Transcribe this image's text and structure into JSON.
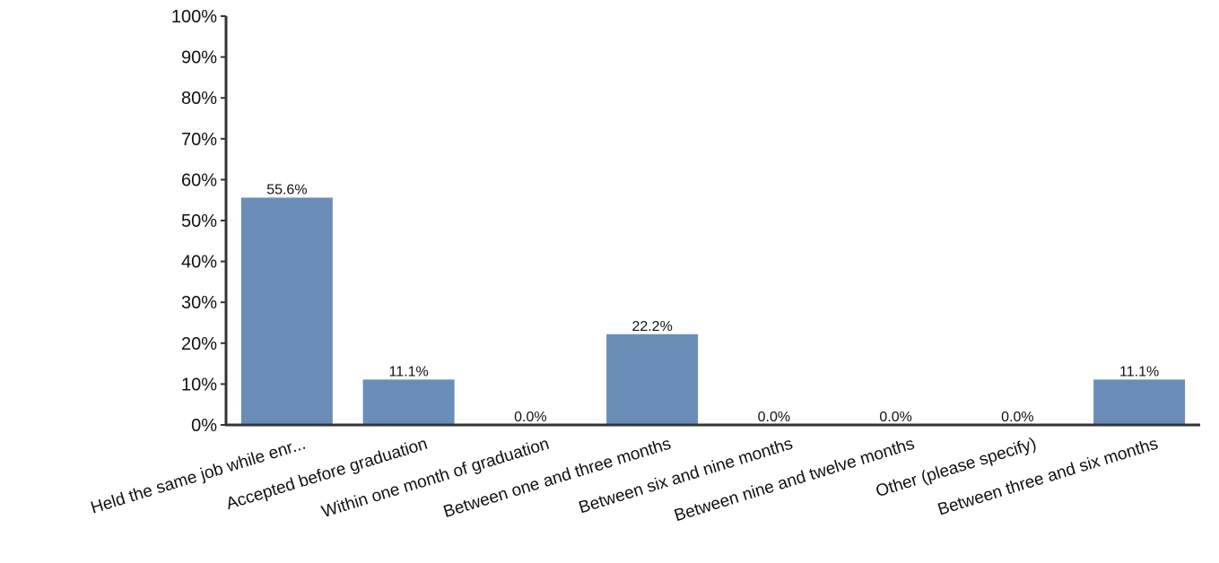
{
  "chart_data": {
    "type": "bar",
    "categories": [
      "Held the same job while enr...",
      "Accepted before graduation",
      "Within one month of graduation",
      "Between one and three months",
      "Between six and nine months",
      "Between nine and twelve months",
      "Other (please specify)",
      "Between three and six months"
    ],
    "values": [
      55.6,
      11.1,
      0.0,
      22.2,
      0.0,
      0.0,
      0.0,
      11.1
    ],
    "data_labels": [
      "55.6%",
      "11.1%",
      "0.0%",
      "22.2%",
      "0.0%",
      "0.0%",
      "0.0%",
      "11.1%"
    ],
    "yticks": [
      "0%",
      "10%",
      "20%",
      "30%",
      "40%",
      "50%",
      "60%",
      "70%",
      "80%",
      "90%",
      "100%"
    ],
    "ylim": [
      0,
      100
    ],
    "grid": false,
    "bar_color": "#6a8db8",
    "axis_color": "#333333"
  }
}
